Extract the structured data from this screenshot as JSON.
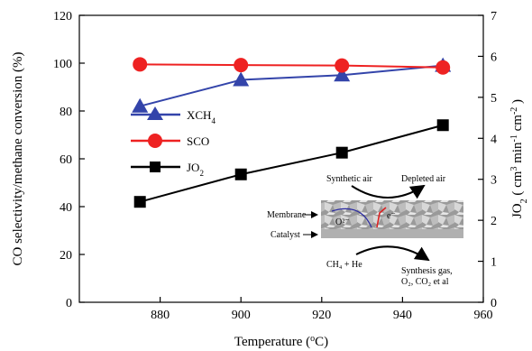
{
  "chart_data": {
    "type": "line",
    "xlabel": "Temperature (°C)",
    "ylabel": "CO selectivity/methane conversion (%)",
    "y2label": "JO2 (cm3 min-1 cm-2)",
    "xlim": [
      860,
      960
    ],
    "ylim": [
      0,
      120
    ],
    "y2lim": [
      0,
      7
    ],
    "xticks": [
      880,
      900,
      920,
      940,
      960
    ],
    "yticks": [
      0,
      20,
      40,
      60,
      80,
      100,
      120
    ],
    "y2ticks": [
      0,
      1,
      2,
      3,
      4,
      5,
      6,
      7
    ],
    "x": [
      875,
      900,
      925,
      950
    ],
    "series": [
      {
        "name": "XCH4",
        "axis": "left",
        "color": "#3344aa",
        "marker": "triangle",
        "values": [
          82,
          93,
          95,
          99
        ]
      },
      {
        "name": "SCO",
        "axis": "left",
        "color": "#ee2222",
        "marker": "circle",
        "values": [
          99.5,
          99.2,
          99.0,
          98.2
        ]
      },
      {
        "name": "JO2",
        "axis": "right",
        "color": "#000000",
        "marker": "square",
        "values": [
          2.45,
          3.12,
          3.65,
          4.32
        ]
      }
    ],
    "legend": {
      "position": "left-middle"
    },
    "grid": false,
    "inset": {
      "top_left": "Synthetic air",
      "top_right": "Depleted air",
      "membrane": "Membrane",
      "catalyst": "Catalyst",
      "oxide_ion": "O²⁻",
      "electron": "e⁻",
      "bottom_left": "CH₄ + He",
      "bottom_right_1": "Synthesis gas,",
      "bottom_right_2": "O₂, CO₂ et al"
    }
  }
}
